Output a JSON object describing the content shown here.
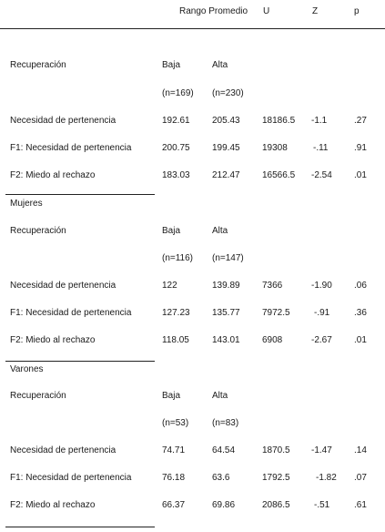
{
  "header": {
    "rank_mean": "Rango Promedio",
    "u": "U",
    "z": "Z",
    "p": "p"
  },
  "sections": [
    {
      "title": "",
      "group_label": "Recuperación",
      "low_label": "Baja",
      "high_label": "Alta",
      "low_n": "(n=169)",
      "high_n": "(n=230)",
      "rows": [
        {
          "label": "Necesidad de pertenencia",
          "low": "192.61",
          "high": "205.43",
          "u": "18186.5",
          "z": "-1.1",
          "p": ".27"
        },
        {
          "label": "F1: Necesidad de pertenencia",
          "low": "200.75",
          "high": "199.45",
          "u": "19308",
          "z": "-.11",
          "p": ".91"
        },
        {
          "label": "F2: Miedo al rechazo",
          "low": "183.03",
          "high": "212.47",
          "u": "16566.5",
          "z": "-2.54",
          "p": ".01"
        }
      ]
    },
    {
      "title": "Mujeres",
      "group_label": "Recuperación",
      "low_label": "Baja",
      "high_label": "Alta",
      "low_n": "(n=116)",
      "high_n": "(n=147)",
      "rows": [
        {
          "label": "Necesidad de pertenencia",
          "low": "122",
          "high": "139.89",
          "u": "7366",
          "z": "-1.90",
          "p": ".06"
        },
        {
          "label": "F1: Necesidad de pertenencia",
          "low": "127.23",
          "high": "135.77",
          "u": "7972.5",
          "z": "-.91",
          "p": ".36"
        },
        {
          "label": "F2: Miedo al rechazo",
          "low": "118.05",
          "high": "143.01",
          "u": "6908",
          "z": "-2.67",
          "p": ".01"
        }
      ]
    },
    {
      "title": "Varones",
      "group_label": "Recuperación",
      "low_label": "Baja",
      "high_label": "Alta",
      "low_n": "(n=53)",
      "high_n": "(n=83)",
      "rows": [
        {
          "label": "Necesidad de pertenencia",
          "low": "74.71",
          "high": "64.54",
          "u": "1870.5",
          "z": "-1.47",
          "p": ".14"
        },
        {
          "label": "F1: Necesidad de pertenencia",
          "low": "76.18",
          "high": "63.6",
          "u": "1792.5",
          "z": "-1.82",
          "p": ".07"
        },
        {
          "label": "F2: Miedo al rechazo",
          "low": "66.37",
          "high": "69.86",
          "u": "2086.5",
          "z": "-.51",
          "p": ".61"
        }
      ]
    }
  ]
}
